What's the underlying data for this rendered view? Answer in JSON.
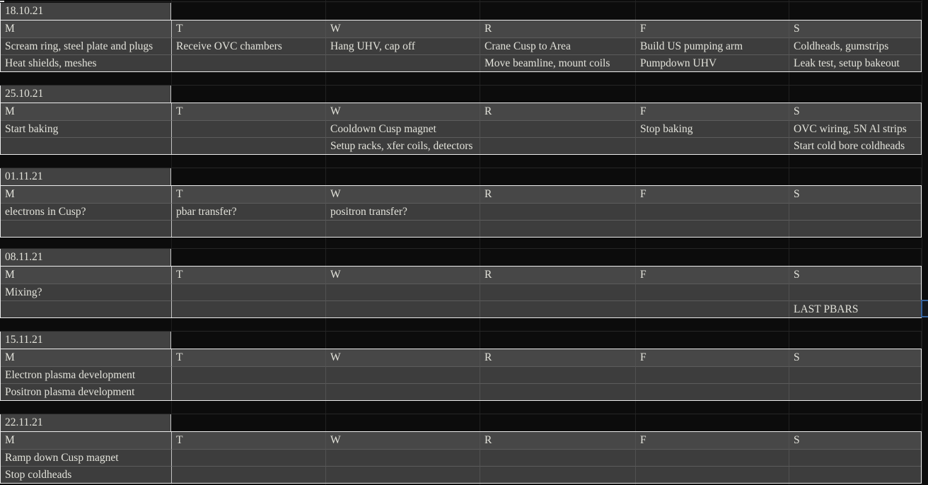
{
  "sheet": {
    "day_headers": [
      "M",
      "T",
      "W",
      "R",
      "F",
      "S"
    ],
    "weeks": [
      {
        "date": "18.10.21",
        "tasks": [
          [
            "Scream ring, steel plate and plugs",
            "Heat shields, meshes"
          ],
          [
            "Receive OVC chambers",
            ""
          ],
          [
            "Hang UHV, cap off",
            ""
          ],
          [
            "Crane Cusp to Area",
            "Move beamline, mount coils"
          ],
          [
            "Build US pumping arm",
            "Pumpdown UHV"
          ],
          [
            "Coldheads, gumstrips",
            "Leak test, setup bakeout"
          ]
        ]
      },
      {
        "date": "25.10.21",
        "tasks": [
          [
            "Start baking",
            ""
          ],
          [
            "",
            ""
          ],
          [
            "Cooldown Cusp magnet",
            "Setup racks, xfer coils, detectors"
          ],
          [
            "",
            ""
          ],
          [
            "Stop baking",
            ""
          ],
          [
            "OVC wiring, 5N Al strips",
            "Start cold bore coldheads"
          ]
        ]
      },
      {
        "date": "01.11.21",
        "tasks": [
          [
            "electrons in Cusp?",
            ""
          ],
          [
            "pbar transfer?",
            ""
          ],
          [
            "positron transfer?",
            ""
          ],
          [
            "",
            ""
          ],
          [
            "",
            ""
          ],
          [
            "",
            ""
          ]
        ]
      },
      {
        "date": "08.11.21",
        "tasks": [
          [
            "Mixing?",
            ""
          ],
          [
            "",
            ""
          ],
          [
            "",
            ""
          ],
          [
            "",
            ""
          ],
          [
            "",
            ""
          ],
          [
            "",
            "LAST PBARS"
          ]
        ]
      },
      {
        "date": "15.11.21",
        "tasks": [
          [
            "Electron plasma development",
            "Positron plasma development"
          ],
          [
            "",
            ""
          ],
          [
            "",
            ""
          ],
          [
            "",
            ""
          ],
          [
            "",
            ""
          ],
          [
            "",
            ""
          ]
        ]
      },
      {
        "date": "22.11.21",
        "tasks": [
          [
            "Ramp down Cusp magnet",
            "Stop coldheads"
          ],
          [
            "",
            ""
          ],
          [
            "",
            ""
          ],
          [
            "",
            ""
          ],
          [
            "",
            ""
          ],
          [
            "",
            ""
          ]
        ]
      }
    ]
  },
  "colors": {
    "background": "#0c0c0c",
    "week_fill": "#3d3d3d",
    "header_fill": "#474747",
    "date_fill": "#424242",
    "border_light": "#ededed",
    "text": "#e2e2da",
    "selection_accent": "#35639e"
  }
}
